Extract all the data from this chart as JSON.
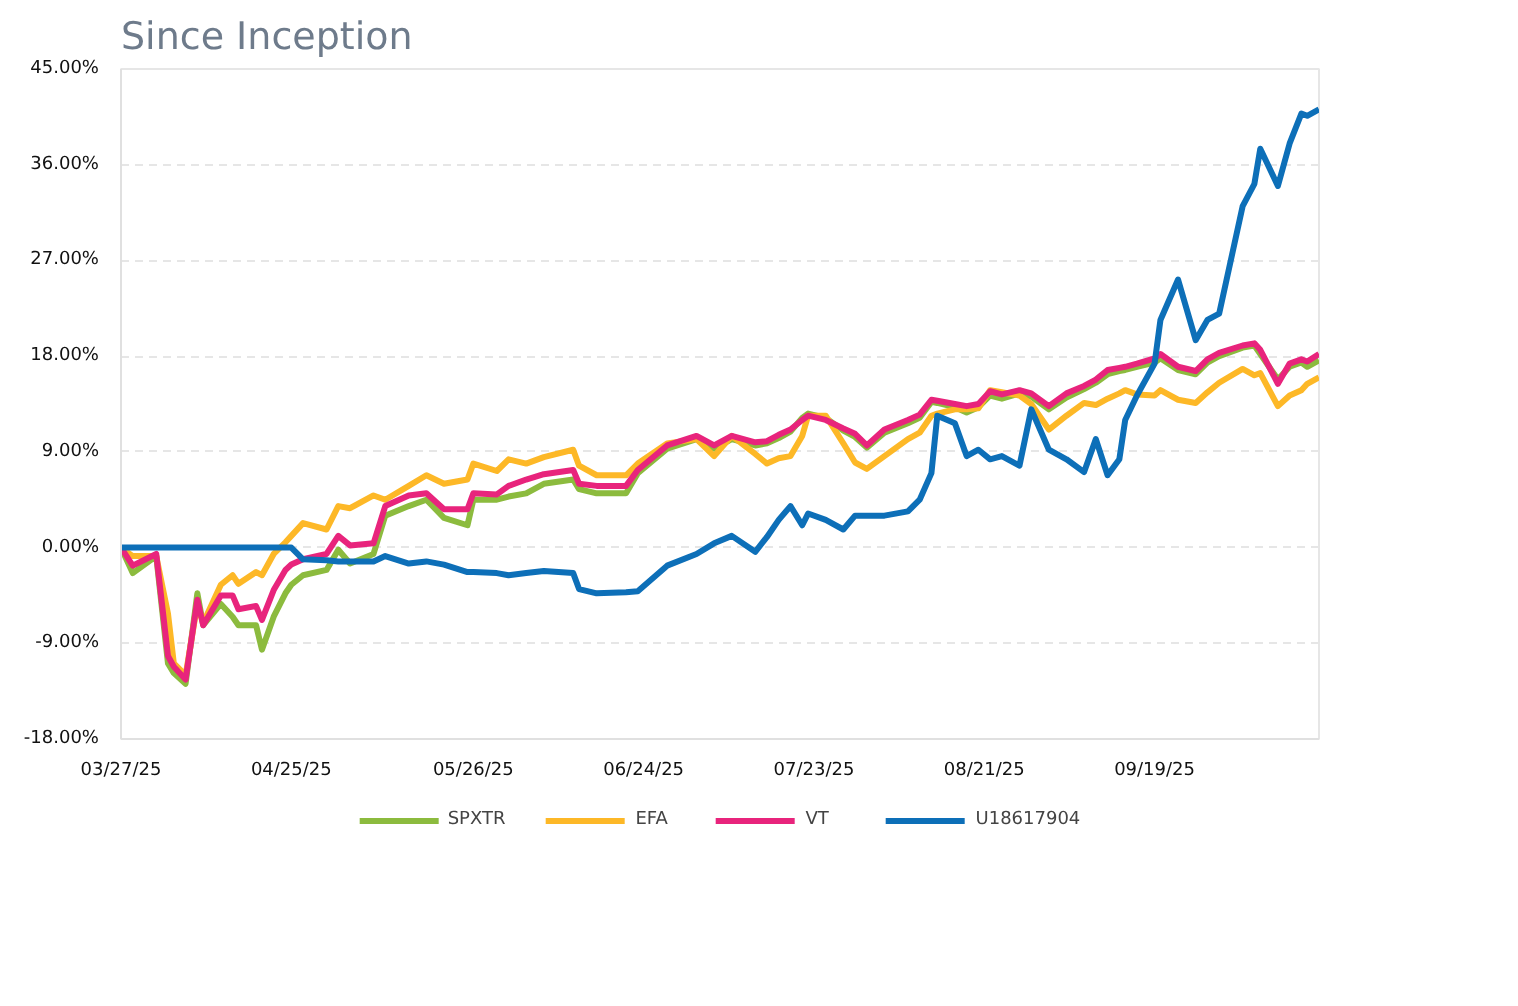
{
  "chart_data": {
    "type": "line",
    "title": "Since Inception",
    "x": [
      "2025-03-27",
      "2025-03-29",
      "2025-04-02",
      "2025-04-04",
      "2025-04-05",
      "2025-04-07",
      "2025-04-09",
      "2025-04-10",
      "2025-04-13",
      "2025-04-15",
      "2025-04-16",
      "2025-04-19",
      "2025-04-20",
      "2025-04-22",
      "2025-04-24",
      "2025-04-25",
      "2025-04-27",
      "2025-05-01",
      "2025-05-03",
      "2025-05-05",
      "2025-05-09",
      "2025-05-11",
      "2025-05-15",
      "2025-05-18",
      "2025-05-21",
      "2025-05-25",
      "2025-05-26",
      "2025-05-30",
      "2025-06-01",
      "2025-06-04",
      "2025-06-07",
      "2025-06-12",
      "2025-06-13",
      "2025-06-16",
      "2025-06-21",
      "2025-06-23",
      "2025-06-28",
      "2025-07-03",
      "2025-07-06",
      "2025-07-09",
      "2025-07-13",
      "2025-07-15",
      "2025-07-17",
      "2025-07-19",
      "2025-07-21",
      "2025-07-22",
      "2025-07-25",
      "2025-07-28",
      "2025-07-30",
      "2025-08-01",
      "2025-08-04",
      "2025-08-08",
      "2025-08-10",
      "2025-08-12",
      "2025-08-13",
      "2025-08-16",
      "2025-08-18",
      "2025-08-20",
      "2025-08-22",
      "2025-08-24",
      "2025-08-27",
      "2025-08-29",
      "2025-09-01",
      "2025-09-04",
      "2025-09-07",
      "2025-09-09",
      "2025-09-11",
      "2025-09-13",
      "2025-09-14",
      "2025-09-16",
      "2025-09-19",
      "2025-09-20",
      "2025-09-23",
      "2025-09-26",
      "2025-09-28",
      "2025-09-30",
      "2025-10-04",
      "2025-10-06",
      "2025-10-07",
      "2025-10-10",
      "2025-10-12",
      "2025-10-14",
      "2025-10-15",
      "2025-10-17"
    ],
    "series": [
      {
        "name": "SPXTR",
        "color": "#8cbb3e",
        "values": [
          0,
          -2.4,
          -0.8,
          -10.9,
          -11.8,
          -12.8,
          -4.3,
          -7.3,
          -5.3,
          -6.5,
          -7.3,
          -7.3,
          -9.6,
          -6.5,
          -4.3,
          -3.5,
          -2.6,
          -2.1,
          -0.2,
          -1.5,
          -0.6,
          3.0,
          3.9,
          4.5,
          2.8,
          2.1,
          4.5,
          4.5,
          4.8,
          5.1,
          6.0,
          6.4,
          5.5,
          5.1,
          5.1,
          7.0,
          9.3,
          10.2,
          9.3,
          10.2,
          9.6,
          9.8,
          10.3,
          10.9,
          12.2,
          12.6,
          12.2,
          11.0,
          10.4,
          9.4,
          10.8,
          11.7,
          12.2,
          13.7,
          13.6,
          13.2,
          12.7,
          13.2,
          14.3,
          14.0,
          14.5,
          14.2,
          13.0,
          14.1,
          14.9,
          15.5,
          16.3,
          16.6,
          16.7,
          17.0,
          17.4,
          17.8,
          16.7,
          16.3,
          17.4,
          18.0,
          18.8,
          19.0,
          18.2,
          15.8,
          17.0,
          17.4,
          17.0,
          17.6
        ]
      },
      {
        "name": "EFA",
        "color": "#fdb827",
        "values": [
          0,
          -0.8,
          -0.8,
          -6.2,
          -10.9,
          -12.0,
          -5.3,
          -7.1,
          -3.5,
          -2.6,
          -3.4,
          -2.3,
          -2.6,
          -0.6,
          0.5,
          1.1,
          2.3,
          1.7,
          3.9,
          3.7,
          4.9,
          4.5,
          5.8,
          6.8,
          6.0,
          6.4,
          7.9,
          7.2,
          8.3,
          7.9,
          8.5,
          9.2,
          7.7,
          6.8,
          6.8,
          7.9,
          9.8,
          10.2,
          8.6,
          10.5,
          8.8,
          7.9,
          8.4,
          8.6,
          10.5,
          12.4,
          12.4,
          9.8,
          8.0,
          7.4,
          8.6,
          10.2,
          10.8,
          12.4,
          12.6,
          13.0,
          13.0,
          13.1,
          14.8,
          14.6,
          14.3,
          13.5,
          11.1,
          12.4,
          13.6,
          13.4,
          14.0,
          14.5,
          14.8,
          14.4,
          14.3,
          14.8,
          13.9,
          13.6,
          14.6,
          15.5,
          16.8,
          16.2,
          16.4,
          13.3,
          14.3,
          14.8,
          15.4,
          16.0
        ]
      },
      {
        "name": "VT",
        "color": "#e8247c",
        "values": [
          0,
          -1.7,
          -0.6,
          -10.2,
          -11.2,
          -12.4,
          -4.9,
          -7.3,
          -4.5,
          -4.5,
          -5.8,
          -5.5,
          -6.8,
          -4.0,
          -2.1,
          -1.6,
          -1.1,
          -0.6,
          1.1,
          0.2,
          0.4,
          3.9,
          4.9,
          5.1,
          3.6,
          3.6,
          5.1,
          5.0,
          5.8,
          6.4,
          6.9,
          7.3,
          6.0,
          5.8,
          5.8,
          7.3,
          9.6,
          10.5,
          9.6,
          10.5,
          9.9,
          10.0,
          10.6,
          11.1,
          12.0,
          12.4,
          12.0,
          11.2,
          10.7,
          9.6,
          11.1,
          12.0,
          12.5,
          13.9,
          13.8,
          13.5,
          13.3,
          13.5,
          14.7,
          14.4,
          14.8,
          14.5,
          13.3,
          14.5,
          15.2,
          15.8,
          16.7,
          16.9,
          17.0,
          17.3,
          17.8,
          18.2,
          17.0,
          16.6,
          17.7,
          18.3,
          19.0,
          19.2,
          18.6,
          15.4,
          17.3,
          17.7,
          17.5,
          18.2
        ]
      },
      {
        "name": "U18617904",
        "color": "#0d6fb8",
        "values": [
          0,
          0,
          0,
          0,
          0,
          0,
          0,
          0,
          0,
          0,
          0,
          0,
          0,
          0,
          0,
          0,
          -1.1,
          -1.2,
          -1.3,
          -1.3,
          -1.3,
          -0.8,
          -1.5,
          -1.3,
          -1.6,
          -2.3,
          -2.3,
          -2.4,
          -2.6,
          -2.4,
          -2.2,
          -2.4,
          -3.9,
          -4.3,
          -4.2,
          -4.1,
          -1.7,
          -0.6,
          0.4,
          1.1,
          -0.4,
          1.0,
          2.6,
          3.9,
          2.1,
          3.2,
          2.6,
          1.7,
          3.0,
          3.0,
          3.0,
          3.4,
          4.5,
          7.0,
          12.4,
          11.7,
          8.6,
          9.2,
          8.3,
          8.6,
          7.7,
          13.0,
          9.2,
          8.3,
          7.1,
          10.2,
          6.8,
          8.3,
          12.0,
          14.3,
          17.3,
          21.4,
          25.2,
          19.5,
          21.4,
          22.0,
          32.1,
          34.2,
          37.5,
          34.0,
          38.0,
          40.8,
          40.6,
          41.2
        ]
      }
    ],
    "xlim": [
      "2025-03-27",
      "2025-10-17"
    ],
    "xticks": [
      {
        "value": "2025-03-27",
        "label": "03/27/25"
      },
      {
        "value": "2025-04-25",
        "label": "04/25/25"
      },
      {
        "value": "2025-05-26",
        "label": "05/26/25"
      },
      {
        "value": "2025-06-24",
        "label": "06/24/25"
      },
      {
        "value": "2025-07-23",
        "label": "07/23/25"
      },
      {
        "value": "2025-08-21",
        "label": "08/21/25"
      },
      {
        "value": "2025-09-19",
        "label": "09/19/25"
      }
    ],
    "ylim": [
      -18,
      45
    ],
    "yticks": [
      {
        "value": -18,
        "label": "-18.00%"
      },
      {
        "value": -9,
        "label": "-9.00%"
      },
      {
        "value": 0,
        "label": "0.00%"
      },
      {
        "value": 9,
        "label": "9.00%"
      },
      {
        "value": 18,
        "label": "18.00%"
      },
      {
        "value": 27,
        "label": "27.00%"
      },
      {
        "value": 36,
        "label": "36.00%"
      },
      {
        "value": 45,
        "label": "45.00%"
      }
    ],
    "grid": "y",
    "legend": "bottom",
    "marker": "none",
    "line_style": "solid"
  }
}
